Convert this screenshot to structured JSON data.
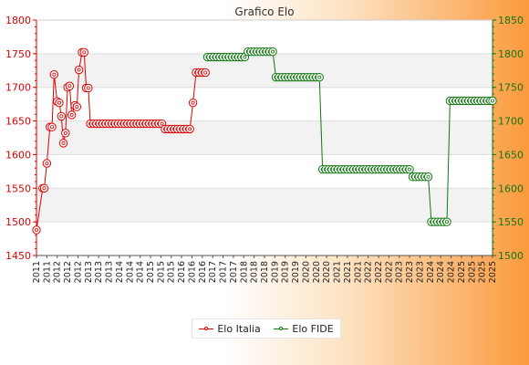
{
  "chart_data": {
    "type": "line",
    "title": "Grafico Elo",
    "grid": true,
    "legend_position": "bottom-center",
    "colors": {
      "Elo Italia": "#dd0000",
      "Elo FIDE": "#117711"
    },
    "y_left": {
      "min": 1450,
      "max": 1800,
      "ticks": [
        "1450",
        "1500",
        "1550",
        "1600",
        "1650",
        "1700",
        "1750",
        "1800"
      ]
    },
    "y_right": {
      "min": 1500,
      "max": 1850,
      "ticks": [
        "1500",
        "1550",
        "1600",
        "1650",
        "1700",
        "1750",
        "1800",
        "1850"
      ]
    },
    "x_tick_labels": [
      "2011",
      "2011",
      "2012",
      "2012",
      "2012",
      "2013",
      "2013",
      "2013",
      "2014",
      "2014",
      "2014",
      "2015",
      "2015",
      "2015",
      "2016",
      "2016",
      "2016",
      "2017",
      "2017",
      "2017",
      "2018",
      "2018",
      "2018",
      "2019",
      "2019",
      "2019",
      "2020",
      "2020",
      "2020",
      "2021",
      "2021",
      "2021",
      "2022",
      "2022",
      "2022",
      "2023",
      "2023",
      "2023",
      "2024",
      "2024",
      "2024",
      "2025",
      "2025",
      "2025",
      "2025"
    ],
    "series": [
      {
        "name": "Elo Italia",
        "axis": "left",
        "points": [
          [
            0,
            1488
          ],
          [
            0.6,
            1550
          ],
          [
            0.75,
            1550
          ],
          [
            1,
            1587
          ],
          [
            1.3,
            1641
          ],
          [
            1.5,
            1641
          ],
          [
            1.7,
            1719
          ],
          [
            2,
            1679
          ],
          [
            2.2,
            1677
          ],
          [
            2.4,
            1657
          ],
          [
            2.6,
            1617
          ],
          [
            2.8,
            1632
          ],
          [
            3,
            1700
          ],
          [
            3.2,
            1702
          ],
          [
            3.4,
            1659
          ],
          [
            3.7,
            1673
          ],
          [
            3.9,
            1671
          ],
          [
            4.1,
            1726
          ],
          [
            4.4,
            1752
          ],
          [
            4.6,
            1752
          ],
          [
            4.8,
            1699
          ],
          [
            5,
            1699
          ],
          [
            5.2,
            1646
          ],
          [
            5.5,
            1646
          ],
          [
            5.8,
            1646
          ],
          [
            6.1,
            1646
          ],
          [
            6.4,
            1646
          ],
          [
            6.7,
            1646
          ],
          [
            7,
            1646
          ],
          [
            7.3,
            1646
          ],
          [
            7.6,
            1646
          ],
          [
            7.9,
            1646
          ],
          [
            8.2,
            1646
          ],
          [
            8.5,
            1646
          ],
          [
            8.8,
            1646
          ],
          [
            9.1,
            1646
          ],
          [
            9.4,
            1646
          ],
          [
            9.7,
            1646
          ],
          [
            10,
            1646
          ],
          [
            10.3,
            1646
          ],
          [
            10.6,
            1646
          ],
          [
            10.9,
            1646
          ],
          [
            11.2,
            1646
          ],
          [
            11.5,
            1646
          ],
          [
            11.8,
            1646
          ],
          [
            12.1,
            1646
          ],
          [
            12.4,
            1638
          ],
          [
            12.7,
            1638
          ],
          [
            13,
            1638
          ],
          [
            13.3,
            1638
          ],
          [
            13.6,
            1638
          ],
          [
            13.9,
            1638
          ],
          [
            14.2,
            1638
          ],
          [
            14.5,
            1638
          ],
          [
            14.8,
            1638
          ],
          [
            15.1,
            1677
          ],
          [
            15.4,
            1722
          ],
          [
            15.7,
            1722
          ],
          [
            16,
            1722
          ],
          [
            16.3,
            1722
          ]
        ]
      },
      {
        "name": "Elo FIDE",
        "axis": "right",
        "points": [
          [
            16.5,
            1795
          ],
          [
            16.8,
            1795
          ],
          [
            17.1,
            1795
          ],
          [
            17.4,
            1795
          ],
          [
            17.7,
            1795
          ],
          [
            18,
            1795
          ],
          [
            18.3,
            1795
          ],
          [
            18.6,
            1795
          ],
          [
            18.9,
            1795
          ],
          [
            19.2,
            1795
          ],
          [
            19.5,
            1795
          ],
          [
            19.8,
            1795
          ],
          [
            20.1,
            1795
          ],
          [
            20.4,
            1803
          ],
          [
            20.7,
            1803
          ],
          [
            21,
            1803
          ],
          [
            21.3,
            1803
          ],
          [
            21.6,
            1803
          ],
          [
            21.9,
            1803
          ],
          [
            22.2,
            1803
          ],
          [
            22.5,
            1803
          ],
          [
            22.8,
            1803
          ],
          [
            23.1,
            1765
          ],
          [
            23.4,
            1765
          ],
          [
            23.7,
            1765
          ],
          [
            24,
            1765
          ],
          [
            24.3,
            1765
          ],
          [
            24.6,
            1765
          ],
          [
            24.9,
            1765
          ],
          [
            25.2,
            1765
          ],
          [
            25.5,
            1765
          ],
          [
            25.8,
            1765
          ],
          [
            26.1,
            1765
          ],
          [
            26.4,
            1765
          ],
          [
            26.7,
            1765
          ],
          [
            27,
            1765
          ],
          [
            27.3,
            1765
          ],
          [
            27.6,
            1628
          ],
          [
            27.9,
            1628
          ],
          [
            28.2,
            1628
          ],
          [
            28.5,
            1628
          ],
          [
            28.8,
            1628
          ],
          [
            29.1,
            1628
          ],
          [
            29.4,
            1628
          ],
          [
            29.7,
            1628
          ],
          [
            30,
            1628
          ],
          [
            30.3,
            1628
          ],
          [
            30.6,
            1628
          ],
          [
            30.9,
            1628
          ],
          [
            31.2,
            1628
          ],
          [
            31.5,
            1628
          ],
          [
            31.8,
            1628
          ],
          [
            32.1,
            1628
          ],
          [
            32.4,
            1628
          ],
          [
            32.7,
            1628
          ],
          [
            33,
            1628
          ],
          [
            33.3,
            1628
          ],
          [
            33.6,
            1628
          ],
          [
            33.9,
            1628
          ],
          [
            34.2,
            1628
          ],
          [
            34.5,
            1628
          ],
          [
            34.8,
            1628
          ],
          [
            35.1,
            1628
          ],
          [
            35.4,
            1628
          ],
          [
            35.7,
            1628
          ],
          [
            36,
            1628
          ],
          [
            36.3,
            1617
          ],
          [
            36.6,
            1617
          ],
          [
            36.9,
            1617
          ],
          [
            37.2,
            1617
          ],
          [
            37.5,
            1617
          ],
          [
            37.8,
            1617
          ],
          [
            38.1,
            1550
          ],
          [
            38.4,
            1550
          ],
          [
            38.7,
            1550
          ],
          [
            39,
            1550
          ],
          [
            39.3,
            1550
          ],
          [
            39.6,
            1550
          ],
          [
            39.9,
            1730
          ],
          [
            40.2,
            1730
          ],
          [
            40.5,
            1730
          ],
          [
            40.8,
            1730
          ],
          [
            41.1,
            1730
          ],
          [
            41.4,
            1730
          ],
          [
            41.7,
            1730
          ],
          [
            42,
            1730
          ],
          [
            42.3,
            1730
          ],
          [
            42.6,
            1730
          ],
          [
            42.9,
            1730
          ],
          [
            43.2,
            1730
          ],
          [
            43.5,
            1730
          ],
          [
            43.8,
            1730
          ],
          [
            44,
            1730
          ]
        ]
      }
    ]
  }
}
